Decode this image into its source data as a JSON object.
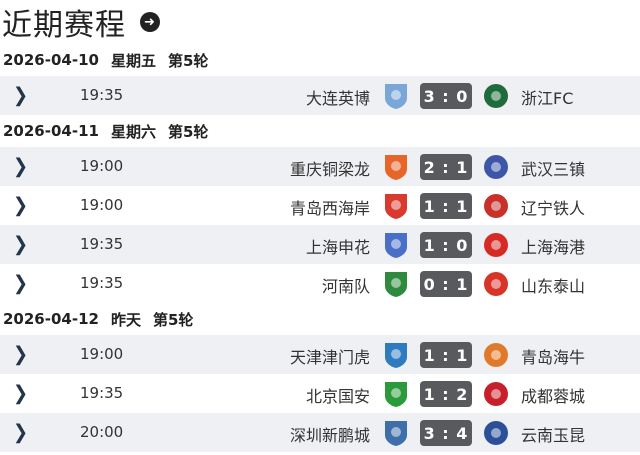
{
  "header": {
    "title": "近期赛程",
    "more_icon": "arrow-right-circle-icon"
  },
  "groups": [
    {
      "date": "2026-04-10",
      "weekday": "星期五",
      "round": "第5轮",
      "matches": [
        {
          "time": "19:35",
          "home": "大连英博",
          "score": "3 : 0",
          "away": "浙江FC",
          "home_color": "#7aa6d8",
          "away_color": "#1f6b3a"
        }
      ]
    },
    {
      "date": "2026-04-11",
      "weekday": "星期六",
      "round": "第5轮",
      "matches": [
        {
          "time": "19:00",
          "home": "重庆铜梁龙",
          "score": "2 : 1",
          "away": "武汉三镇",
          "home_color": "#e8652a",
          "away_color": "#3d56a8"
        },
        {
          "time": "19:00",
          "home": "青岛西海岸",
          "score": "1 : 1",
          "away": "辽宁铁人",
          "home_color": "#d83a2e",
          "away_color": "#c8302a"
        },
        {
          "time": "19:35",
          "home": "上海申花",
          "score": "1 : 0",
          "away": "上海海港",
          "home_color": "#4a6fc8",
          "away_color": "#d52b24"
        },
        {
          "time": "19:35",
          "home": "河南队",
          "score": "0 : 1",
          "away": "山东泰山",
          "home_color": "#2e8b3e",
          "away_color": "#d8352a"
        }
      ]
    },
    {
      "date": "2026-04-12",
      "weekday": "昨天",
      "round": "第5轮",
      "matches": [
        {
          "time": "19:00",
          "home": "天津津门虎",
          "score": "1 : 1",
          "away": "青岛海牛",
          "home_color": "#2f7bc0",
          "away_color": "#e07a2a"
        },
        {
          "time": "19:35",
          "home": "北京国安",
          "score": "1 : 2",
          "away": "成都蓉城",
          "home_color": "#2a9a3a",
          "away_color": "#c8202a"
        },
        {
          "time": "20:00",
          "home": "深圳新鹏城",
          "score": "3 : 4",
          "away": "云南玉昆",
          "home_color": "#3f6fa8",
          "away_color": "#2c4f9a"
        }
      ]
    }
  ]
}
